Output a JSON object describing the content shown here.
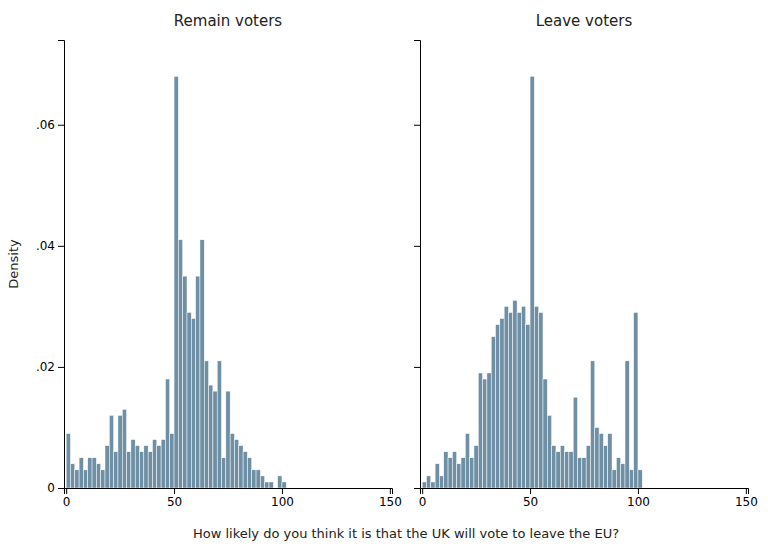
{
  "chart_data": [
    {
      "type": "histogram",
      "title": "Remain voters",
      "ylabel": "Density",
      "xlabel": "How likely do you think it is that the UK will vote to leave the EU?",
      "color": "#6e8fa4",
      "bins": [
        0,
        2,
        4,
        6,
        8,
        10,
        12,
        14,
        16,
        18,
        20,
        22,
        24,
        26,
        28,
        30,
        32,
        34,
        36,
        38,
        40,
        42,
        44,
        46,
        48,
        50,
        52,
        54,
        56,
        58,
        60,
        62,
        64,
        66,
        68,
        70,
        72,
        74,
        76,
        78,
        80,
        82,
        84,
        86,
        88,
        90,
        92,
        94,
        96,
        98,
        100,
        102
      ],
      "values": [
        0.009,
        0.004,
        0.003,
        0.005,
        0.003,
        0.005,
        0.005,
        0.004,
        0.003,
        0.007,
        0.012,
        0.006,
        0.012,
        0.013,
        0.006,
        0.008,
        0.007,
        0.006,
        0.007,
        0.006,
        0.008,
        0.007,
        0.008,
        0.018,
        0.009,
        0.068,
        0.041,
        0.035,
        0.029,
        0.028,
        0.035,
        0.041,
        0.021,
        0.017,
        0.016,
        0.021,
        0.005,
        0.016,
        0.009,
        0.008,
        0.007,
        0.006,
        0.005,
        0.003,
        0.003,
        0.002,
        0.001,
        0.001,
        0.0,
        0.002,
        0.001
      ],
      "xlim": [
        -1,
        151
      ],
      "xticks": [
        0,
        50,
        100,
        150
      ],
      "ylim": [
        0,
        0.074
      ],
      "yticks": [
        0,
        {
          "value": 0.02,
          "label": ".02"
        },
        {
          "value": 0.04,
          "label": ".04"
        },
        {
          "value": 0.06,
          "label": ".06"
        }
      ]
    },
    {
      "type": "histogram",
      "title": "Leave voters",
      "color": "#6e8fa4",
      "bins": [
        0,
        2,
        4,
        6,
        8,
        10,
        12,
        14,
        16,
        18,
        20,
        22,
        24,
        26,
        28,
        30,
        32,
        34,
        36,
        38,
        40,
        42,
        44,
        46,
        48,
        50,
        52,
        54,
        56,
        58,
        60,
        62,
        64,
        66,
        68,
        70,
        72,
        74,
        76,
        78,
        80,
        82,
        84,
        86,
        88,
        90,
        92,
        94,
        96,
        98,
        100,
        102
      ],
      "values": [
        0.001,
        0.002,
        0.001,
        0.004,
        0.002,
        0.006,
        0.005,
        0.006,
        0.004,
        0.005,
        0.009,
        0.005,
        0.007,
        0.019,
        0.018,
        0.019,
        0.025,
        0.027,
        0.028,
        0.03,
        0.029,
        0.031,
        0.029,
        0.03,
        0.027,
        0.068,
        0.03,
        0.029,
        0.018,
        0.012,
        0.007,
        0.006,
        0.007,
        0.006,
        0.006,
        0.015,
        0.005,
        0.005,
        0.007,
        0.021,
        0.01,
        0.009,
        0.007,
        0.009,
        0.003,
        0.005,
        0.004,
        0.021,
        0.003,
        0.029,
        0.003
      ],
      "xlim": [
        -1,
        151
      ],
      "xticks": [
        0,
        50,
        100,
        150
      ],
      "ylim": [
        0,
        0.074
      ],
      "yticks": [
        0,
        0.02,
        0.04,
        0.06
      ],
      "tick_labels": "x"
    }
  ]
}
